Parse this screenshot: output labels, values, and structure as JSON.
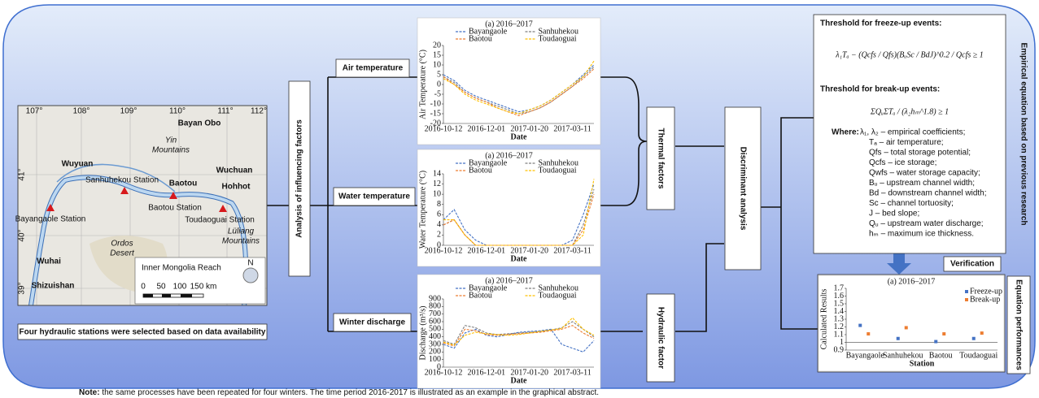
{
  "map": {
    "title": "Inner Mongolia Reach",
    "north": "N",
    "scale_labels": [
      "0",
      "50",
      "100",
      "150 km"
    ],
    "lon_labels": [
      "107°",
      "108°",
      "109°",
      "110°",
      "111°",
      "112°"
    ],
    "lat_labels": [
      "41°",
      "40°",
      "39°"
    ],
    "places": [
      [
        "Bayan Obo"
      ],
      [
        "Yin",
        "Mountains"
      ],
      [
        "Wuyuan"
      ],
      [
        "Wuchuan"
      ],
      [
        "Hohhot"
      ],
      [
        "Baotou"
      ],
      [
        "Wuhai"
      ],
      [
        "Shizuishan"
      ],
      [
        "Ordos",
        "Desert"
      ],
      [
        "Lüliang",
        "Mountains"
      ]
    ],
    "stations": [
      "Bayangaole Station",
      "Sanhuhekou Station",
      "Baotou Station",
      "Toudaoguai Station"
    ]
  },
  "map_caption": "Four hydraulic stations were selected based on data availability",
  "analysis_label": "Analysis of influencing factors",
  "factors": [
    "Air temperature",
    "Water temperature",
    "Winter discharge"
  ],
  "charts": [
    {
      "type": "line",
      "title": "(a) 2016–2017",
      "y_label": "Air Temperature (°C)",
      "x_label": "Date",
      "categories": [
        "2016-10-12",
        null,
        null,
        null,
        "2016-12-01",
        null,
        null,
        null,
        "2017-01-20",
        null,
        null,
        null,
        "2017-03-11",
        null,
        null
      ],
      "ylim": [
        -20,
        20
      ],
      "yticks": [
        -20,
        -15,
        -10,
        -5,
        0,
        5,
        10,
        15,
        20
      ],
      "series": [
        {
          "name": "Bayangaole",
          "color": "#4472c4",
          "values": [
            5,
            2,
            -3,
            -6,
            -8,
            -10,
            -12,
            -14,
            -13,
            -11,
            -8,
            -4,
            0,
            5,
            10
          ]
        },
        {
          "name": "Sanhuhekou",
          "color": "#7f7f7f",
          "values": [
            4,
            1,
            -4,
            -7,
            -9,
            -11,
            -13,
            -15,
            -14,
            -12,
            -9,
            -5,
            -1,
            4,
            9
          ]
        },
        {
          "name": "Baotou",
          "color": "#ed7d31",
          "values": [
            4,
            0,
            -4,
            -7,
            -9,
            -12,
            -14,
            -16,
            -14,
            -12,
            -9,
            -5,
            -1,
            3,
            8
          ]
        },
        {
          "name": "Toudaoguai",
          "color": "#ffc000",
          "values": [
            3,
            0,
            -5,
            -8,
            -10,
            -12,
            -14,
            -15,
            -13,
            -11,
            -8,
            -4,
            0,
            4,
            12
          ]
        }
      ]
    },
    {
      "type": "line",
      "title": "(a) 2016–2017",
      "y_label": "Water Temperature (°C)",
      "x_label": "Date",
      "categories": [
        "2016-10-12",
        null,
        null,
        null,
        "2016-12-01",
        null,
        null,
        null,
        "2017-01-20",
        null,
        null,
        null,
        "2017-03-11",
        null,
        null
      ],
      "ylim": [
        0,
        14
      ],
      "yticks": [
        0,
        2,
        4,
        6,
        8,
        10,
        12,
        14
      ],
      "series": [
        {
          "name": "Bayangaole",
          "color": "#4472c4",
          "values": [
            5,
            7,
            3,
            1,
            0,
            0,
            0,
            0,
            0,
            0,
            0,
            0,
            1,
            6,
            12
          ]
        },
        {
          "name": "Sanhuhekou",
          "color": "#7f7f7f",
          "values": [
            4,
            5,
            2,
            0,
            0,
            0,
            0,
            0,
            0,
            0,
            0,
            0,
            0,
            4,
            11
          ]
        },
        {
          "name": "Baotou",
          "color": "#ed7d31",
          "values": [
            4,
            5,
            2,
            0,
            0,
            0,
            0,
            0,
            0,
            0,
            0,
            0,
            0,
            3,
            10
          ]
        },
        {
          "name": "Toudaoguai",
          "color": "#ffc000",
          "values": [
            5,
            5,
            2,
            0,
            0,
            0,
            0,
            0,
            0,
            0,
            0,
            0,
            0,
            2,
            13
          ]
        }
      ]
    },
    {
      "type": "line",
      "title": "(a) 2016–2017",
      "y_label": "Discharge (m³/s)",
      "x_label": "Date",
      "categories": [
        "2016-10-12",
        null,
        null,
        null,
        "2016-12-01",
        null,
        null,
        null,
        "2017-01-20",
        null,
        null,
        null,
        "2017-03-11",
        null,
        null
      ],
      "ylim": [
        0,
        900
      ],
      "yticks": [
        0,
        100,
        200,
        300,
        400,
        500,
        600,
        700,
        800,
        900
      ],
      "series": [
        {
          "name": "Bayangaole",
          "color": "#4472c4",
          "values": [
            300,
            250,
            450,
            500,
            420,
            400,
            430,
            460,
            470,
            480,
            500,
            300,
            250,
            200,
            350
          ]
        },
        {
          "name": "Sanhuhekou",
          "color": "#7f7f7f",
          "values": [
            350,
            300,
            550,
            520,
            450,
            430,
            440,
            450,
            460,
            470,
            490,
            520,
            600,
            500,
            400
          ]
        },
        {
          "name": "Baotou",
          "color": "#ed7d31",
          "values": [
            320,
            280,
            500,
            480,
            430,
            420,
            430,
            440,
            450,
            460,
            480,
            500,
            550,
            450,
            380
          ]
        },
        {
          "name": "Toudaoguai",
          "color": "#ffc000",
          "values": [
            330,
            290,
            420,
            460,
            440,
            430,
            420,
            430,
            450,
            470,
            490,
            510,
            650,
            500,
            420
          ]
        }
      ]
    }
  ],
  "thermal": "Thermal factors",
  "hydraulic": "Hydraulic factor",
  "discriminant": "Discriminant analysis",
  "equations": {
    "freeze_title": "Threshold for freeze-up events:",
    "freeze_formula": "λ₁Tₐ − (Qcfs / Qfs)(BᵤSc / BdJ)^0.2 / Qcfs ≥ 1",
    "break_title": "Threshold for break-up events:",
    "break_formula": "ΣQᵤΣTₐ / (λ₂hₘ^1.8) ≥ 1",
    "where": "Where:",
    "items": [
      "λ₁, λ₂ – empirical coefficients;",
      "Tₐ – air temperature;",
      "Qfs – total storage potential;",
      "Qcfs – ice storage;",
      "Qwfs – water storage capacity;",
      "Bᵤ – upstream channel width;",
      "Bd – downstream channel width;",
      "Sc – channel tortuosity;",
      "J – bed slope;",
      "Qᵤ – upstream water discharge;",
      "hₘ – maximum ice thickness."
    ]
  },
  "verification": "Verification",
  "empirical": "Empirical equation based on previous research",
  "performances": "Equation performances",
  "result_chart": {
    "type": "scatter",
    "title": "(a) 2016–2017",
    "y_label": "Calculated Results",
    "x_label": "Station",
    "categories": [
      "Bayangaole",
      "Sanhuhekou",
      "Baotou",
      "Toudaoguai"
    ],
    "ylim": [
      0.9,
      1.7
    ],
    "yticks": [
      0.9,
      1,
      1.1,
      1.2,
      1.3,
      1.4,
      1.5,
      1.6,
      1.7
    ],
    "threshold": 1,
    "series": [
      {
        "name": "Freeze-up",
        "color": "#4472c4",
        "values": [
          1.22,
          1.05,
          1.01,
          1.05
        ]
      },
      {
        "name": "Break-up",
        "color": "#ed7d31",
        "values": [
          1.11,
          1.19,
          1.11,
          1.12
        ]
      }
    ]
  },
  "note": {
    "label": "Note:",
    "text": " the same processes have been repeated for four winters. The time period 2016-2017 is illustrated as an example in the graphical abstract."
  }
}
